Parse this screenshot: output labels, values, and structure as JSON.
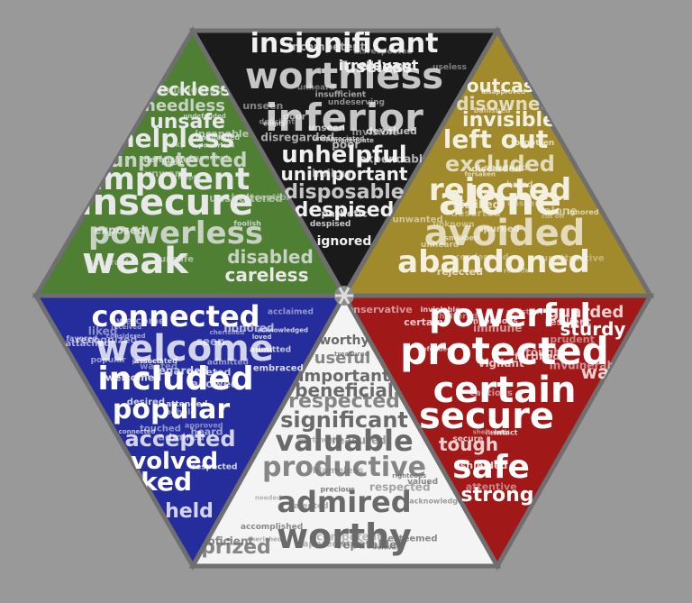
{
  "background_color": "#999999",
  "center_icon": "asterisk-icon",
  "segments": [
    {
      "id": "top-left",
      "color": "#4e7f33",
      "text_color": "#e8e8e8",
      "big_words": [
        "reckless",
        "heedless",
        "unsafe",
        "helpless",
        "unprotected",
        "impotent",
        "insecure",
        "powerless",
        "weak",
        "careless",
        "disabled"
      ],
      "small_words": [
        "inept",
        "feeble",
        "unguarded",
        "endangered",
        "imperiled",
        "unwary",
        "undefended",
        "vulnerable",
        "incapable",
        "unsheltered",
        "defenseless",
        "risky",
        "exposed",
        "susceptible",
        "foolish",
        "powerless",
        "unsafe"
      ]
    },
    {
      "id": "top",
      "color": "#1a1a1a",
      "text_color": "#f0f0f0",
      "big_words": [
        "insignificant",
        "worthless",
        "useless",
        "irrelevant",
        "inferior",
        "unhelpful",
        "unimportant",
        "disposable",
        "despised",
        "ignored"
      ],
      "small_words": [
        "useless",
        "unseen",
        "disrespected",
        "unappreciated",
        "despised",
        "empty",
        "unseen",
        "inadequate",
        "expendable",
        "pathetic",
        "incompetent",
        "devalued",
        "poor",
        "empty",
        "invisible",
        "disregarded",
        "insufficient",
        "hollow",
        "unheard",
        "undeserving",
        "deficient",
        "poor"
      ]
    },
    {
      "id": "top-right",
      "color": "#a08a2c",
      "text_color": "#f4f0e0",
      "big_words": [
        "outcast",
        "disowned",
        "invisible",
        "left out",
        "excluded",
        "rejected",
        "alone",
        "avoided",
        "abandoned"
      ],
      "small_words": [
        "shunned",
        "rejected",
        "condemned",
        "banished",
        "unseen",
        "disliked",
        "rebuffed",
        "cut off",
        "discarded",
        "unheard",
        "unknown",
        "forgotten",
        "ignored",
        "forsaken",
        "deserted",
        "snubbed",
        "hated",
        "disapproved",
        "unwanted",
        "unattractive",
        "alone",
        "spurned"
      ]
    },
    {
      "id": "bottom-left",
      "color": "#252c9c",
      "text_color": "#ffffff",
      "big_words": [
        "connected",
        "welcome",
        "included",
        "popular",
        "accepted",
        "involved",
        "liked",
        "held"
      ],
      "small_words": [
        "recognized",
        "associated",
        "welcomed",
        "admitted",
        "greeted",
        "beheld",
        "praised",
        "favored",
        "welcome",
        "connected",
        "touched",
        "embraced",
        "acknowledged",
        "admired",
        "loved",
        "heard",
        "received",
        "wanted",
        "desired",
        "liked",
        "acclaimed",
        "respected",
        "attached",
        "allowed",
        "considered",
        "honored",
        "seen",
        "admitted",
        "attended",
        "regarded",
        "approved",
        "popular",
        "cherished"
      ]
    },
    {
      "id": "bottom",
      "color": "#f4f4f4",
      "text_color": "#6a6a6a",
      "big_words": [
        "worthy",
        "useful",
        "important",
        "beneficial",
        "respected",
        "significant",
        "valuable",
        "productive",
        "admired",
        "worthy",
        "prized"
      ],
      "small_words": [
        "precious",
        "righteous",
        "respected",
        "treasured",
        "competent",
        "worthwhile",
        "blameless",
        "relevant",
        "proficient",
        "talented",
        "accomplished",
        "reputable",
        "acknowledged",
        "appreciated",
        "cherished",
        "esteemed",
        "needed",
        "valued",
        "treasured"
      ]
    },
    {
      "id": "bottom-right",
      "color": "#a01818",
      "text_color": "#ffffff",
      "big_words": [
        "powerful",
        "guarded",
        "sturdy",
        "protected",
        "wary",
        "certain",
        "secure",
        "tough",
        "safe",
        "strong"
      ],
      "small_words": [
        "sheltered",
        "conservative",
        "defended",
        "vigilant",
        "fortified",
        "resilient",
        "invulnerable",
        "secure",
        "immune",
        "resistant",
        "inviolable",
        "intact",
        "tough",
        "sheltered",
        "careful",
        "cautious",
        "impervious",
        "attentive",
        "shielded",
        "prudent",
        "certain"
      ]
    }
  ]
}
